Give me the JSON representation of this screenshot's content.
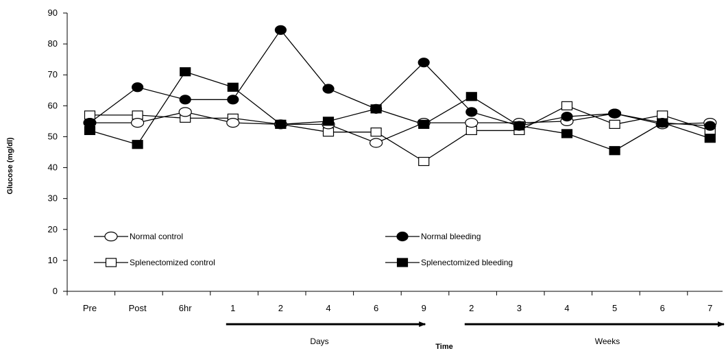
{
  "chart_data": {
    "type": "line",
    "title": "",
    "xlabel": "Time",
    "ylabel": "Glucose (mg/dl)",
    "ylim": [
      0,
      90
    ],
    "yticks": [
      0,
      10,
      20,
      30,
      40,
      50,
      60,
      70,
      80,
      90
    ],
    "grid": false,
    "legend_position": "lower-middle",
    "categories": [
      "Pre",
      "Post",
      "6hr",
      "1",
      "2",
      "4",
      "6",
      "9",
      "2",
      "3",
      "4",
      "5",
      "6",
      "7"
    ],
    "period_labels": [
      {
        "label": "Days",
        "from_index": 3,
        "to_index": 7
      },
      {
        "label": "Weeks",
        "from_index": 8,
        "to_index": 13
      }
    ],
    "series": [
      {
        "name": "Normal control",
        "marker": "circle-open",
        "values": [
          54.5,
          54.5,
          58,
          54.5,
          54,
          54,
          48,
          54.5,
          54.5,
          54.5,
          55,
          57.5,
          54,
          54.5
        ]
      },
      {
        "name": "Normal bleeding",
        "marker": "circle-filled",
        "values": [
          54.5,
          66,
          62,
          62,
          84.5,
          65.5,
          59,
          74,
          58,
          53.5,
          56.5,
          57.5,
          54.5,
          53.5
        ]
      },
      {
        "name": "Splenectomized control",
        "marker": "square-open",
        "values": [
          57,
          57,
          56,
          56,
          54,
          51.5,
          51.5,
          42,
          52,
          52,
          60,
          54,
          57,
          52
        ]
      },
      {
        "name": "Splenectomized bleeding",
        "marker": "square-filled",
        "values": [
          52,
          47.5,
          71,
          66,
          54,
          55,
          59,
          54,
          63,
          53.5,
          51,
          45.5,
          54.5,
          49.5
        ]
      }
    ]
  }
}
